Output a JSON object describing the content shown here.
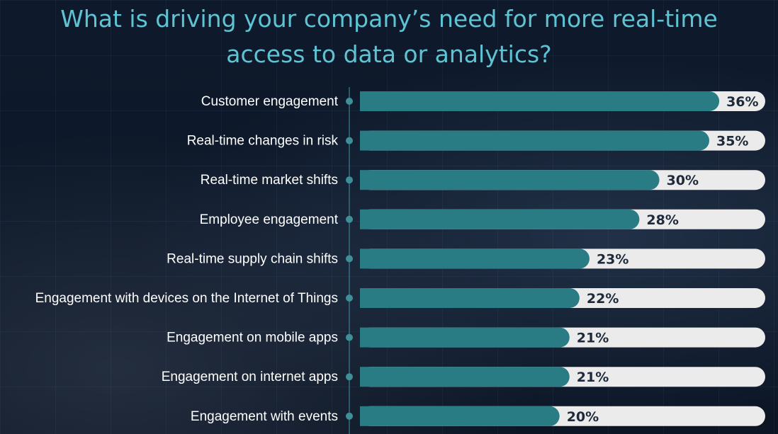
{
  "title": {
    "line1": "What is driving your company’s need for more real-time",
    "line2": "access to data or analytics?"
  },
  "colors": {
    "background": "#0c1626",
    "title": "#5ec4d4",
    "bar_fill": "#2a7c84",
    "bar_track": "#ebebeb",
    "label_text": "#ffffff",
    "value_text": "#1e2a3a",
    "axis_dot": "#3f8f98"
  },
  "chart_data": {
    "type": "bar",
    "orientation": "horizontal",
    "title": "What is driving your company’s need for more real-time access to data or analytics?",
    "categories": [
      "Customer engagement",
      "Real-time changes in risk",
      "Real-time market shifts",
      "Employee engagement",
      "Real-time supply chain shifts",
      "Engagement with devices on the Internet of Things",
      "Engagement on mobile apps",
      "Engagement on internet apps",
      "Engagement with events"
    ],
    "values": [
      36,
      35,
      30,
      28,
      23,
      22,
      21,
      21,
      20
    ],
    "value_labels": [
      "36%",
      "35%",
      "30%",
      "28%",
      "23%",
      "22%",
      "21%",
      "21%",
      "20%"
    ],
    "unit": "%",
    "xlim": [
      0,
      40
    ],
    "grid": false,
    "legend": "none"
  }
}
